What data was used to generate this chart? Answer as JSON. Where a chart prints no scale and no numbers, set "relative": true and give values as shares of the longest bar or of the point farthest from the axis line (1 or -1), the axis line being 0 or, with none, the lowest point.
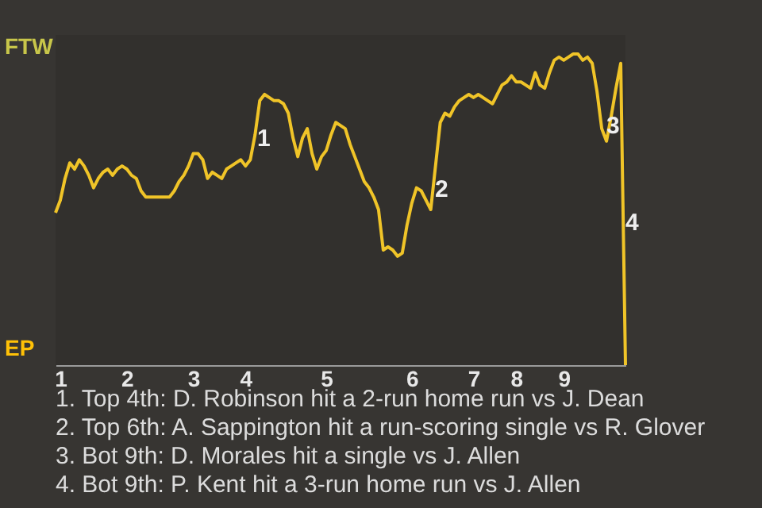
{
  "chart_data": {
    "type": "line",
    "relative": true,
    "categories": [
      null,
      "1",
      null,
      null,
      null,
      null,
      null,
      null,
      null,
      null,
      null,
      null,
      null,
      null,
      null,
      "2",
      null,
      null,
      null,
      null,
      null,
      null,
      null,
      null,
      null,
      null,
      null,
      null,
      null,
      "3",
      null,
      null,
      null,
      null,
      null,
      null,
      null,
      null,
      null,
      null,
      "4",
      null,
      null,
      null,
      null,
      null,
      null,
      null,
      null,
      null,
      null,
      null,
      null,
      null,
      null,
      null,
      null,
      "5",
      null,
      null,
      null,
      null,
      null,
      null,
      null,
      null,
      null,
      null,
      null,
      null,
      null,
      null,
      null,
      null,
      null,
      "6",
      null,
      null,
      null,
      null,
      null,
      null,
      null,
      null,
      null,
      null,
      null,
      null,
      "7",
      null,
      null,
      null,
      null,
      null,
      null,
      null,
      null,
      "8",
      null,
      null,
      null,
      null,
      null,
      null,
      null,
      null,
      null,
      "9",
      null,
      null,
      null,
      null,
      null,
      null,
      null,
      null,
      null,
      null,
      null,
      null,
      null
    ],
    "series": [
      {
        "color": "#f0c428",
        "values": [
          0.49,
          0.53,
          0.6,
          0.65,
          0.63,
          0.66,
          0.64,
          0.61,
          0.57,
          0.6,
          0.62,
          0.63,
          0.61,
          0.63,
          0.64,
          0.63,
          0.61,
          0.6,
          0.56,
          0.54,
          0.54,
          0.54,
          0.54,
          0.54,
          0.54,
          0.56,
          0.59,
          0.61,
          0.64,
          0.68,
          0.68,
          0.66,
          0.6,
          0.62,
          0.61,
          0.6,
          0.63,
          0.64,
          0.65,
          0.66,
          0.64,
          0.66,
          0.74,
          0.85,
          0.87,
          0.86,
          0.85,
          0.85,
          0.84,
          0.81,
          0.73,
          0.67,
          0.73,
          0.76,
          0.68,
          0.63,
          0.67,
          0.69,
          0.74,
          0.78,
          0.77,
          0.76,
          0.71,
          0.67,
          0.63,
          0.59,
          0.57,
          0.54,
          0.5,
          0.37,
          0.38,
          0.37,
          0.35,
          0.36,
          0.45,
          0.52,
          0.57,
          0.56,
          0.53,
          0.5,
          0.64,
          0.78,
          0.81,
          0.8,
          0.83,
          0.85,
          0.86,
          0.87,
          0.86,
          0.87,
          0.86,
          0.85,
          0.84,
          0.87,
          0.9,
          0.91,
          0.93,
          0.91,
          0.91,
          0.9,
          0.89,
          0.94,
          0.9,
          0.89,
          0.94,
          0.98,
          0.99,
          0.98,
          0.99,
          1,
          1,
          0.98,
          0.99,
          0.97,
          0.88,
          0.76,
          0.72,
          0.8,
          0.89,
          0.97,
          0
        ]
      }
    ],
    "marker": "none",
    "line_style": "solid",
    "annotations": [
      "FTW",
      "EP",
      "1",
      "2",
      "3",
      "4",
      "1. Top 4th: D. Robinson hit a 2-run home run vs J. Dean",
      "2. Top 6th: A. Sappington hit a run-scoring single vs R. Glover",
      "3. Bot 9th: D. Morales hit a single vs J. Allen",
      "4. Bot 9th: P. Kent hit a 3-run home run vs J. Allen"
    ]
  }
}
